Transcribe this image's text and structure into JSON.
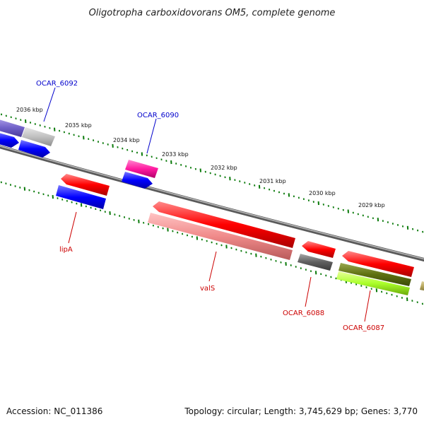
{
  "title": "Oligotropha carboxidovorans OM5, complete genome",
  "footer": {
    "accession": "Accession: NC_011386",
    "summary": "Topology: circular; Length: 3,745,629 bp; Genes: 3,770"
  },
  "ruler": [
    "2036 kbp",
    "2035 kbp",
    "2034 kbp",
    "2033 kbp",
    "2032 kbp",
    "2031 kbp",
    "2030 kbp",
    "2029 kbp"
  ],
  "labels": {
    "ocar6092": "OCAR_6092",
    "ocar6090": "OCAR_6090",
    "lipA": "lipA",
    "valS": "valS",
    "ocar6088": "OCAR_6088",
    "ocar6087": "OCAR_6087"
  },
  "colors": {
    "forward_cds": "#0000ff",
    "reverse_cds": "#ff0000",
    "forward_label": "#0000cc",
    "reverse_label": "#cc0000",
    "backbone": "#7a7a7a",
    "ticks": "#0a7a0a"
  }
}
